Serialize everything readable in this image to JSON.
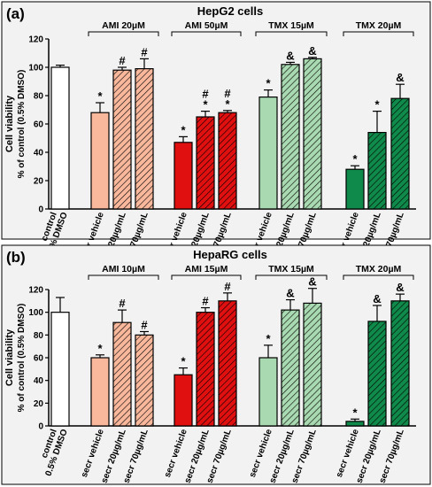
{
  "palette": {
    "control": "#ffffff",
    "ami_light": "#f9b89c",
    "ami_dark": "#e01010",
    "tmx_light": "#a8d9b0",
    "tmx_dark": "#108a4a",
    "frame_bg": "#f2f2f2"
  },
  "chart_data": [
    {
      "type": "bar",
      "panel_label": "(a)",
      "title": "HepG2 cells",
      "ylabel_line1": "Cell viability",
      "ylabel_line2": "% of control (0.5% DMSO)",
      "ylim": [
        0,
        120
      ],
      "yticks": [
        "0",
        "20",
        "40",
        "60",
        "80",
        "100",
        "120"
      ],
      "categories": [
        "control 0.5% DMSO",
        "secr vehicle",
        "secr 20µg/mL",
        "secr 70µg/mL",
        "secr vehicle",
        "secr 20µg/mL",
        "secr 70µg/mL",
        "secr vehicle",
        "secr 20µg/mL",
        "secr 70µg/mL",
        "secr vehicle",
        "secr 20µg/mL",
        "secr 70µg/mL"
      ],
      "groups": [
        {
          "name": "AMI 20µM"
        },
        {
          "name": "AMI 50µM"
        },
        {
          "name": "TMX 15µM"
        },
        {
          "name": "TMX 20µM"
        }
      ],
      "values": [
        100,
        68,
        98,
        99,
        47,
        65,
        68,
        79,
        102,
        106,
        28,
        54,
        78
      ],
      "errors": [
        1.5,
        7,
        2,
        7,
        4,
        4,
        1.5,
        5,
        1.5,
        1,
        2.5,
        15,
        10
      ],
      "markers": [
        "",
        "*",
        "#",
        "#",
        "*",
        "#\n*",
        "#\n*",
        "*",
        "&",
        "&",
        "*",
        "*",
        "&"
      ]
    },
    {
      "type": "bar",
      "panel_label": "(b)",
      "title": "HepaRG cells",
      "ylabel_line1": "Cell viability",
      "ylabel_line2": "% of control (0.5% DMSO)",
      "ylim": [
        0,
        120
      ],
      "yticks": [
        "0",
        "20",
        "40",
        "60",
        "80",
        "100",
        "120"
      ],
      "categories": [
        "control 0.5% DMSO",
        "secr vehicle",
        "secr 20µg/mL",
        "secr 70µg/mL",
        "secr vehicle",
        "secr 20µg/mL",
        "secr 70µg/mL",
        "secr vehicle",
        "secr 20µg/mL",
        "secr 70µg/mL",
        "secr vehicle",
        "secr 20µg/mL",
        "secr 70µg/mL"
      ],
      "groups": [
        {
          "name": "AMI 10µM"
        },
        {
          "name": "AMI 15µM"
        },
        {
          "name": "TMX 15µM"
        },
        {
          "name": "TMX 20µM"
        }
      ],
      "values": [
        100,
        60,
        91,
        80,
        45,
        100,
        110,
        60,
        102,
        108,
        4,
        92,
        110
      ],
      "errors": [
        13,
        2.5,
        11,
        3,
        6,
        4,
        7,
        11,
        9,
        13,
        2,
        14,
        6
      ],
      "markers": [
        "",
        "*",
        "#",
        "#",
        "*",
        "#",
        "#",
        "*",
        "&",
        "&",
        "*",
        "&",
        "&"
      ]
    }
  ]
}
